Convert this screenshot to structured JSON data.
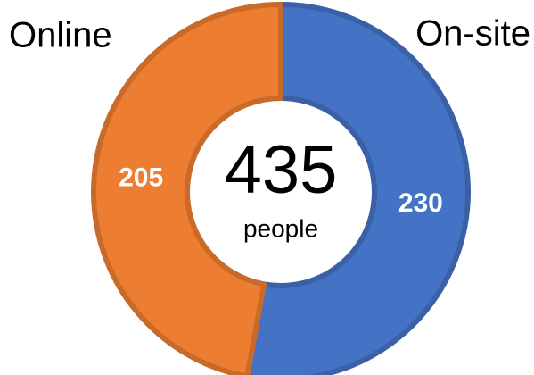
{
  "chart_data": {
    "type": "donut",
    "categories": [
      "On-site",
      "Online"
    ],
    "values": [
      230,
      205
    ],
    "colors": [
      "#4472c4",
      "#ed7d31"
    ],
    "total": 435,
    "total_label": "people"
  }
}
